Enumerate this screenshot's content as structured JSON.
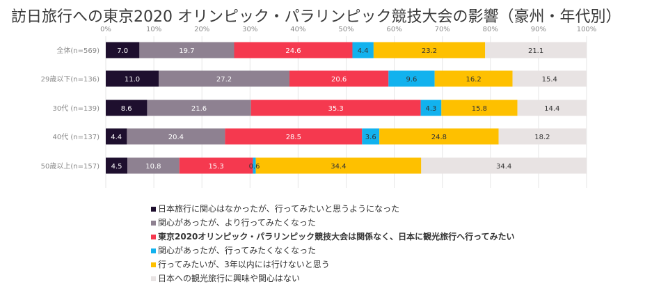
{
  "chart_data": {
    "type": "bar",
    "orientation": "horizontal",
    "stacked": true,
    "title": "訪日旅行への東京2020 オリンピック・パラリンピック競技大会の影響（豪州・年代別）",
    "xlim": [
      0,
      100
    ],
    "x_ticks": [
      "0%",
      "10%",
      "20%",
      "30%",
      "40%",
      "50%",
      "60%",
      "70%",
      "80%",
      "90%",
      "100%"
    ],
    "categories": [
      "全体(n=569)",
      "29歳以下(n=136)",
      "30代 (n=139)",
      "40代 (n=137)",
      "50歳以上(n=157)"
    ],
    "legend_position": "bottom",
    "grid": true,
    "series": [
      {
        "name": "日本旅行に関心はなかったが、行ってみたいと思うようになった",
        "color": "#1e0f2e",
        "label_color": "#ffffff",
        "values": [
          7.0,
          11.0,
          8.6,
          4.4,
          4.5
        ],
        "labels": [
          "7.0",
          "11.0",
          "8.6",
          "4.4",
          "4.5"
        ]
      },
      {
        "name": "関心があったが、より行ってみたくなった",
        "color": "#8e8191",
        "label_color": "#ffffff",
        "values": [
          19.7,
          27.2,
          21.6,
          20.4,
          10.8
        ],
        "labels": [
          "19.7",
          "27.2",
          "21.6",
          "20.4",
          "10.8"
        ]
      },
      {
        "name": "東京2020オリンピック・パラリンピック競技大会は関係なく、日本に観光旅行へ行ってみたい",
        "color": "#f5394f",
        "label_color": "#ffffff",
        "values": [
          24.6,
          20.6,
          35.3,
          28.5,
          15.3
        ],
        "labels": [
          "24.6",
          "20.6",
          "35.3",
          "28.5",
          "15.3"
        ],
        "bold": true
      },
      {
        "name": "関心があったが、行ってみたくなくなった",
        "color": "#12b2ee",
        "label_color": "#333333",
        "values": [
          4.4,
          9.6,
          4.3,
          3.6,
          0.6
        ],
        "labels": [
          "4.4",
          "9.6",
          "4.3",
          "3.6",
          "0.6"
        ]
      },
      {
        "name": "行ってみたいが、3年以内には行けないと思う",
        "color": "#fec000",
        "label_color": "#333333",
        "values": [
          23.2,
          16.2,
          15.8,
          24.8,
          34.4
        ],
        "labels": [
          "23.2",
          "16.2",
          "15.8",
          "24.8",
          "34.4"
        ]
      },
      {
        "name": "日本への観光旅行に興味や関心はない",
        "color": "#e8e3e3",
        "label_color": "#333333",
        "values": [
          21.1,
          15.4,
          14.4,
          18.2,
          34.4
        ],
        "labels": [
          "21.1",
          "15.4",
          "14.4",
          "18.2",
          "34.4"
        ]
      }
    ]
  }
}
